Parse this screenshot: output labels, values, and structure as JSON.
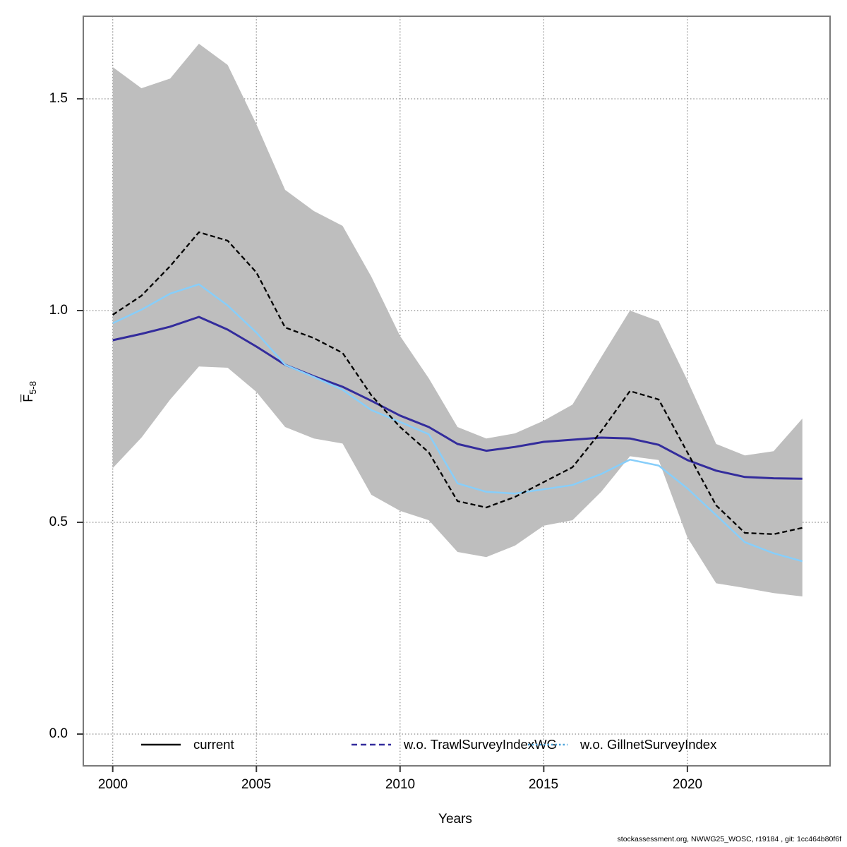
{
  "chart_data": {
    "type": "line",
    "title": "",
    "x_label": "Years",
    "y_label": {
      "base": "F",
      "subscript": "5-8"
    },
    "x": [
      2000,
      2001,
      2002,
      2003,
      2004,
      2005,
      2006,
      2007,
      2008,
      2009,
      2010,
      2011,
      2012,
      2013,
      2014,
      2015,
      2016,
      2017,
      2018,
      2019,
      2020,
      2021,
      2022,
      2023,
      2024
    ],
    "series": [
      {
        "name": "current",
        "color": "#000000",
        "line_style": "dashed",
        "width": 2.3,
        "values": [
          0.99,
          1.035,
          1.105,
          1.185,
          1.165,
          1.09,
          0.96,
          0.935,
          0.9,
          0.8,
          0.725,
          0.665,
          0.55,
          0.535,
          0.56,
          0.595,
          0.63,
          0.715,
          0.81,
          0.79,
          0.665,
          0.54,
          0.475,
          0.472,
          0.487
        ]
      },
      {
        "name": "w.o. TrawlSurveyIndexWG",
        "color": "#332C9C",
        "line_style": "solid",
        "width": 3,
        "values": [
          0.93,
          0.945,
          0.962,
          0.985,
          0.955,
          0.915,
          0.872,
          0.845,
          0.82,
          0.787,
          0.752,
          0.725,
          0.685,
          0.669,
          0.678,
          0.69,
          0.695,
          0.7,
          0.698,
          0.683,
          0.647,
          0.622,
          0.607,
          0.604,
          0.603
        ]
      },
      {
        "name": "w.o. GillnetSurveyIndex",
        "color": "#87CEFA",
        "line_style": "solid",
        "width": 2.5,
        "values": [
          0.97,
          1.002,
          1.04,
          1.062,
          1.012,
          0.948,
          0.872,
          0.843,
          0.813,
          0.765,
          0.737,
          0.708,
          0.592,
          0.572,
          0.568,
          0.578,
          0.588,
          0.614,
          0.648,
          0.634,
          0.58,
          0.517,
          0.453,
          0.427,
          0.408
        ]
      }
    ],
    "band": {
      "name": "confidence-band",
      "color": "#BEBEBE",
      "upper": [
        1.575,
        1.525,
        1.548,
        1.63,
        1.58,
        1.44,
        1.285,
        1.235,
        1.2,
        1.08,
        0.94,
        0.84,
        0.725,
        0.698,
        0.71,
        0.74,
        0.778,
        0.89,
        1.0,
        0.975,
        0.835,
        0.685,
        0.658,
        0.668,
        0.745
      ],
      "lower": [
        0.628,
        0.7,
        0.79,
        0.868,
        0.865,
        0.808,
        0.725,
        0.698,
        0.686,
        0.565,
        0.527,
        0.505,
        0.43,
        0.418,
        0.445,
        0.492,
        0.505,
        0.572,
        0.656,
        0.647,
        0.464,
        0.356,
        0.345,
        0.333,
        0.325
      ]
    },
    "x_ticks": [
      {
        "value": 2000,
        "label": "2000"
      },
      {
        "value": 2005,
        "label": "2005"
      },
      {
        "value": 2010,
        "label": "2010"
      },
      {
        "value": 2015,
        "label": "2015"
      },
      {
        "value": 2020,
        "label": "2020"
      }
    ],
    "y_ticks": [
      {
        "value": 0.0,
        "label": "0.0"
      },
      {
        "value": 0.5,
        "label": "0.5"
      },
      {
        "value": 1.0,
        "label": "1.0"
      },
      {
        "value": 1.5,
        "label": "1.5"
      }
    ],
    "xlim": [
      1999,
      2025
    ],
    "ylim": [
      -0.075,
      1.695
    ],
    "grid": "dotted",
    "legend_position": "bottom-inside"
  },
  "legend": [
    {
      "label": "current",
      "swatch": "solid-black",
      "color": "#000000"
    },
    {
      "label": "w.o. TrawlSurveyIndexWG",
      "swatch": "dashed-navy",
      "color": "#332C9C"
    },
    {
      "label": "w.o. GillnetSurveyIndex",
      "swatch": "dotted-skyblue",
      "color": "#4AA2D9"
    }
  ],
  "footer": "stockassessment.org, NWWG25_WOSC, r19184 , git: 1cc464b80f6f",
  "colors": {
    "band": "#BEBEBE",
    "grid": "#8C8C8C",
    "box": "#7A7A7A",
    "tick": "#3A3A3A",
    "background": "#FFFFFF"
  }
}
